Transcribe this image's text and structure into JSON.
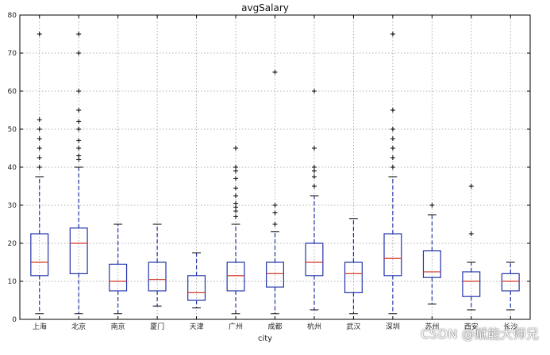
{
  "chart_data": {
    "type": "box",
    "title": "avgSalary",
    "xlabel": "city",
    "ylabel": "",
    "ylim": [
      0,
      80
    ],
    "yticks": [
      0,
      10,
      20,
      30,
      40,
      50,
      60,
      70,
      80
    ],
    "grid": true,
    "colors": {
      "box": "#2233aa",
      "median": "#d63b2b",
      "whisker": "#2233aa",
      "grid": "#9a9a9a"
    },
    "categories": [
      "上海",
      "北京",
      "南京",
      "厦门",
      "天津",
      "广州",
      "成都",
      "杭州",
      "武汉",
      "深圳",
      "苏州",
      "西安",
      "长沙"
    ],
    "boxes": [
      {
        "q1": 11.5,
        "median": 15,
        "q3": 22.5,
        "lower": 1.5,
        "upper": 37.5,
        "fliers": [
          40,
          42.5,
          45,
          47.5,
          50,
          52.5,
          75
        ]
      },
      {
        "q1": 12,
        "median": 20,
        "q3": 24,
        "lower": 1.5,
        "upper": 40,
        "fliers": [
          42,
          43,
          45,
          47,
          50,
          52,
          55,
          60,
          70,
          75
        ]
      },
      {
        "q1": 7.5,
        "median": 10,
        "q3": 14.5,
        "lower": 1.5,
        "upper": 25,
        "fliers": []
      },
      {
        "q1": 7.5,
        "median": 10.5,
        "q3": 15,
        "lower": 3.5,
        "upper": 25,
        "fliers": []
      },
      {
        "q1": 5,
        "median": 7,
        "q3": 11.5,
        "lower": 3,
        "upper": 17.5,
        "fliers": []
      },
      {
        "q1": 7.5,
        "median": 11.5,
        "q3": 15,
        "lower": 1.5,
        "upper": 25,
        "fliers": [
          27,
          28.5,
          29.5,
          30.5,
          32.5,
          34.5,
          37,
          39,
          40,
          45
        ]
      },
      {
        "q1": 8.5,
        "median": 12,
        "q3": 15,
        "lower": 1.5,
        "upper": 23,
        "fliers": [
          25,
          28,
          30,
          65
        ]
      },
      {
        "q1": 11.5,
        "median": 15,
        "q3": 20,
        "lower": 2.5,
        "upper": 32.5,
        "fliers": [
          35,
          37.5,
          39,
          40,
          45,
          60
        ]
      },
      {
        "q1": 7,
        "median": 12,
        "q3": 15,
        "lower": 1.5,
        "upper": 26.5,
        "fliers": []
      },
      {
        "q1": 11.5,
        "median": 16,
        "q3": 22.5,
        "lower": 1.5,
        "upper": 37.5,
        "fliers": [
          40,
          42.5,
          45,
          47.5,
          50,
          55,
          75
        ]
      },
      {
        "q1": 11,
        "median": 12.5,
        "q3": 18,
        "lower": 4,
        "upper": 27.5,
        "fliers": [
          30
        ]
      },
      {
        "q1": 6,
        "median": 10,
        "q3": 12.5,
        "lower": 2.5,
        "upper": 15,
        "fliers": [
          22.5,
          35
        ]
      },
      {
        "q1": 7.5,
        "median": 10,
        "q3": 12,
        "lower": 2.5,
        "upper": 15,
        "fliers": []
      }
    ]
  },
  "watermark": "CSDN @赋能大师兄"
}
